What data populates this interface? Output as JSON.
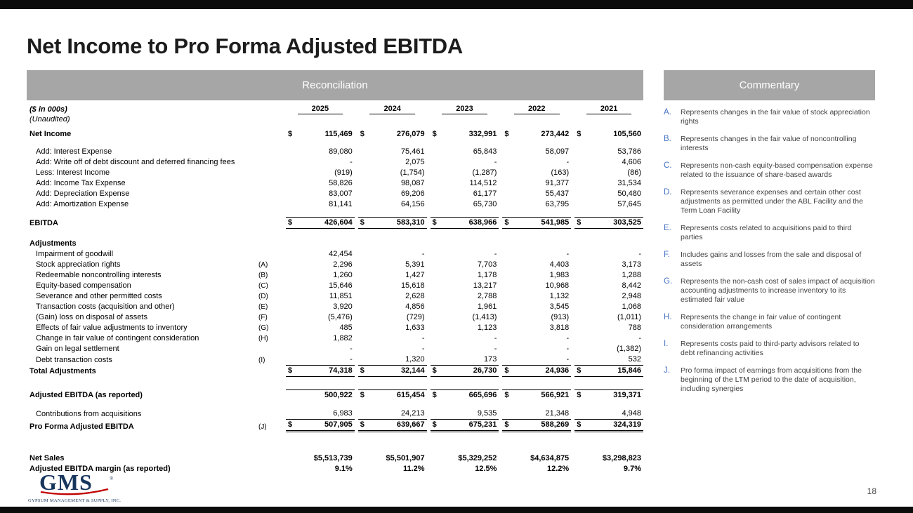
{
  "slide": {
    "title": "Net Income to Pro Forma Adjusted EBITDA",
    "page_number": "18"
  },
  "reconciliation": {
    "header": "Reconciliation",
    "unit_label": "($ in 000s)",
    "unaudited_label": "(Unaudited)",
    "years": [
      "2025",
      "2024",
      "2023",
      "2022",
      "2021"
    ],
    "rows": [
      {
        "label": "Net Income",
        "ref": "",
        "bold": true,
        "dollar": true,
        "values": [
          "115,469",
          "276,079",
          "332,991",
          "273,442",
          "105,560"
        ]
      },
      {
        "label": "Add: Interest Expense",
        "ref": "",
        "indent": true,
        "gap": 10,
        "values": [
          "89,080",
          "75,461",
          "65,843",
          "58,097",
          "53,786"
        ]
      },
      {
        "label": "Add: Write off of debt discount and deferred financing fees",
        "ref": "",
        "indent": true,
        "values": [
          "-",
          "2,075",
          "-",
          "-",
          "4,606"
        ]
      },
      {
        "label": "Less: Interest Income",
        "ref": "",
        "indent": true,
        "values": [
          "(919)",
          "(1,754)",
          "(1,287)",
          "(163)",
          "(86)"
        ]
      },
      {
        "label": "Add: Income Tax Expense",
        "ref": "",
        "indent": true,
        "values": [
          "58,826",
          "98,087",
          "114,512",
          "91,377",
          "31,534"
        ]
      },
      {
        "label": "Add: Depreciation Expense",
        "ref": "",
        "indent": true,
        "values": [
          "83,007",
          "69,206",
          "61,177",
          "55,437",
          "50,480"
        ]
      },
      {
        "label": "Add: Amortization Expense",
        "ref": "",
        "indent": true,
        "values": [
          "81,141",
          "64,156",
          "65,730",
          "63,795",
          "57,645"
        ]
      },
      {
        "label": "EBITDA",
        "ref": "",
        "bold": true,
        "dollar": true,
        "gap": 10,
        "lines": "t b",
        "values": [
          "426,604",
          "583,310",
          "638,966",
          "541,985",
          "303,525"
        ]
      },
      {
        "label": "Adjustments",
        "ref": "",
        "bold": true,
        "gap": 14
      },
      {
        "label": "Impairment of goodwill",
        "ref": "",
        "indent": true,
        "values": [
          "42,454",
          "-",
          "-",
          "-",
          "-"
        ]
      },
      {
        "label": "Stock appreciation rights",
        "ref": "(A)",
        "indent": true,
        "values": [
          "2,296",
          "5,391",
          "7,703",
          "4,403",
          "3,173"
        ]
      },
      {
        "label": "Redeemable noncontrolling interests",
        "ref": "(B)",
        "indent": true,
        "values": [
          "1,260",
          "1,427",
          "1,178",
          "1,983",
          "1,288"
        ]
      },
      {
        "label": "Equity-based compensation",
        "ref": "(C)",
        "indent": true,
        "values": [
          "15,646",
          "15,618",
          "13,217",
          "10,968",
          "8,442"
        ]
      },
      {
        "label": "Severance and other permitted costs",
        "ref": "(D)",
        "indent": true,
        "values": [
          "11,851",
          "2,628",
          "2,788",
          "1,132",
          "2,948"
        ]
      },
      {
        "label": "Transaction costs (acquisition and other)",
        "ref": "(E)",
        "indent": true,
        "values": [
          "3,920",
          "4,856",
          "1,961",
          "3,545",
          "1,068"
        ]
      },
      {
        "label": "(Gain) loss on disposal of assets",
        "ref": "(F)",
        "indent": true,
        "values": [
          "(5,476)",
          "(729)",
          "(1,413)",
          "(913)",
          "(1,011)"
        ]
      },
      {
        "label": "Effects of fair value adjustments to inventory",
        "ref": "(G)",
        "indent": true,
        "values": [
          "485",
          "1,633",
          "1,123",
          "3,818",
          "788"
        ]
      },
      {
        "label": "Change in fair value of contingent consideration",
        "ref": "(H)",
        "indent": true,
        "values": [
          "1,882",
          "-",
          "-",
          "-",
          "-"
        ]
      },
      {
        "label": "Gain on legal settlement",
        "ref": "",
        "indent": true,
        "values": [
          "-",
          "-",
          "-",
          "-",
          "(1,382)"
        ]
      },
      {
        "label": "Debt transaction costs",
        "ref": "(I)",
        "indent": true,
        "lines": "b",
        "values": [
          "-",
          "1,320",
          "173",
          "-",
          "532"
        ]
      },
      {
        "label": "Total Adjustments",
        "ref": "",
        "bold": true,
        "dollar": true,
        "lines": "b",
        "values": [
          "74,318",
          "32,144",
          "26,730",
          "24,936",
          "15,846"
        ]
      },
      {
        "label": "Adjusted EBITDA (as reported)",
        "ref": "",
        "bold": true,
        "gap": 18,
        "lines": "t",
        "dollar": [
          false,
          true,
          true,
          true,
          true
        ],
        "values": [
          "500,922",
          "615,454",
          "665,696",
          "566,921",
          "319,371"
        ]
      },
      {
        "label": "Contributions from acquisitions",
        "ref": "",
        "indent": true,
        "gap": 11,
        "lines": "b",
        "values": [
          "6,983",
          "24,213",
          "9,535",
          "21,348",
          "4,948"
        ]
      },
      {
        "label": "Pro Forma Adjusted EBITDA",
        "ref": "(J)",
        "bold": true,
        "dollar": true,
        "lines": "db",
        "values": [
          "507,905",
          "639,667",
          "675,231",
          "588,269",
          "324,319"
        ]
      },
      {
        "label": "Net Sales",
        "ref": "",
        "bold": true,
        "gap": 30,
        "values": [
          "$5,513,739",
          "$5,501,907",
          "$5,329,252",
          "$4,634,875",
          "$3,298,823"
        ]
      },
      {
        "label": "Adjusted EBITDA margin (as reported)",
        "ref": "",
        "bold": true,
        "values": [
          "9.1%",
          "11.2%",
          "12.5%",
          "12.2%",
          "9.7%"
        ]
      }
    ]
  },
  "commentary": {
    "header": "Commentary",
    "items": [
      {
        "letter": "A.",
        "text": "Represents changes in the fair value of stock appreciation rights"
      },
      {
        "letter": "B.",
        "text": "Represents changes in the fair value of noncontrolling interests"
      },
      {
        "letter": "C.",
        "text": "Represents non-cash equity-based compensation expense related to the issuance of share-based awards"
      },
      {
        "letter": "D.",
        "text": "Represents severance expenses and certain other cost adjustments as permitted under the ABL Facility and the Term Loan Facility"
      },
      {
        "letter": "E.",
        "text": "Represents costs related to acquisitions paid to third parties"
      },
      {
        "letter": "F.",
        "text": "Includes gains and losses from the sale and disposal of assets"
      },
      {
        "letter": "G.",
        "text": "Represents the non-cash cost of sales impact of acquisition accounting adjustments to increase inventory to its estimated fair value"
      },
      {
        "letter": "H.",
        "text": "Represents the change in fair value of contingent consideration arrangements"
      },
      {
        "letter": "I.",
        "text": "Represents costs paid to third-party advisors related to debt refinancing activities"
      },
      {
        "letter": "J.",
        "text": "Pro forma impact of earnings from acquisitions from the beginning of the LTM period to the date of acquisition, including synergies"
      }
    ]
  },
  "footer": {
    "logo_text": "GMS",
    "logo_subtext": "GYPSUM MANAGEMENT & SUPPLY, INC.",
    "logo_color": "#17365d",
    "logo_accent_color": "#c00000"
  }
}
